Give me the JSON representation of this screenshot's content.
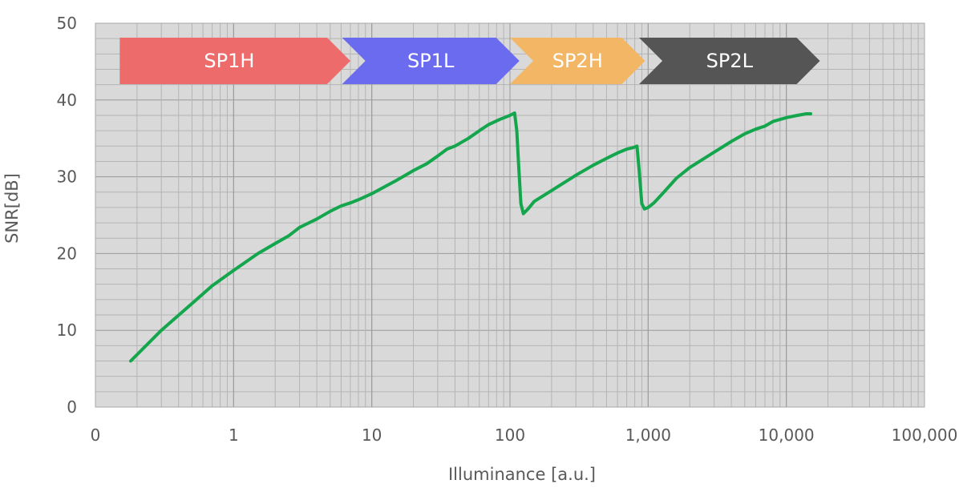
{
  "chart_data": {
    "type": "line",
    "x_scale": "log",
    "xlim": [
      0.1,
      100000
    ],
    "ylim": [
      0,
      50
    ],
    "grid": true,
    "xlabel": "Illuminance [a.u.]",
    "ylabel": "SNR[dB]",
    "x_tick_values": [
      0.1,
      1,
      10,
      100,
      1000,
      10000,
      100000
    ],
    "x_tick_labels": [
      "0",
      "1",
      "10",
      "100",
      "1,000",
      "10,000",
      "100,000"
    ],
    "y_tick_values": [
      0,
      10,
      20,
      30,
      40,
      50
    ],
    "y_tick_labels": [
      "0",
      "10",
      "20",
      "30",
      "40",
      "50"
    ],
    "bands": [
      {
        "label": "SP1H",
        "x_start": 0.15,
        "x_end": 7,
        "color": "#ee6b6b"
      },
      {
        "label": "SP1L",
        "x_start": 6.1,
        "x_end": 117,
        "color": "#6b6bef"
      },
      {
        "label": "SP2H",
        "x_start": 100,
        "x_end": 950,
        "color": "#f2b664"
      },
      {
        "label": "SP2L",
        "x_start": 860,
        "x_end": 17500,
        "color": "#555555"
      }
    ],
    "series": [
      {
        "color": "#13a64d",
        "points": [
          [
            0.18,
            6.0
          ],
          [
            0.3,
            10.0
          ],
          [
            0.5,
            13.5
          ],
          [
            0.7,
            15.8
          ],
          [
            1.0,
            17.8
          ],
          [
            1.5,
            20.0
          ],
          [
            2.0,
            21.3
          ],
          [
            2.5,
            22.3
          ],
          [
            3.0,
            23.4
          ],
          [
            4.0,
            24.5
          ],
          [
            5.0,
            25.5
          ],
          [
            6.0,
            26.2
          ],
          [
            7.0,
            26.6
          ],
          [
            8.0,
            27.0
          ],
          [
            10.0,
            27.8
          ],
          [
            13.0,
            28.9
          ],
          [
            15.0,
            29.5
          ],
          [
            20.0,
            30.8
          ],
          [
            25.0,
            31.7
          ],
          [
            30.0,
            32.7
          ],
          [
            35.0,
            33.6
          ],
          [
            40.0,
            34.0
          ],
          [
            50.0,
            35.0
          ],
          [
            60.0,
            36.0
          ],
          [
            70.0,
            36.8
          ],
          [
            85.0,
            37.5
          ],
          [
            100.0,
            38.0
          ],
          [
            108.0,
            38.3
          ],
          [
            112.0,
            36.0
          ],
          [
            116.0,
            31.0
          ],
          [
            120.0,
            26.5
          ],
          [
            125.0,
            25.2
          ],
          [
            135.0,
            25.8
          ],
          [
            150.0,
            26.8
          ],
          [
            200.0,
            28.2
          ],
          [
            300.0,
            30.2
          ],
          [
            400.0,
            31.5
          ],
          [
            500.0,
            32.4
          ],
          [
            600.0,
            33.1
          ],
          [
            700.0,
            33.6
          ],
          [
            780.0,
            33.8
          ],
          [
            830.0,
            34.0
          ],
          [
            860.0,
            31.0
          ],
          [
            900.0,
            26.5
          ],
          [
            940.0,
            25.8
          ],
          [
            1000.0,
            26.0
          ],
          [
            1100.0,
            26.6
          ],
          [
            1300.0,
            28.0
          ],
          [
            1600.0,
            29.8
          ],
          [
            2000.0,
            31.2
          ],
          [
            3000.0,
            33.2
          ],
          [
            4000.0,
            34.6
          ],
          [
            5000.0,
            35.6
          ],
          [
            6000.0,
            36.2
          ],
          [
            7000.0,
            36.6
          ],
          [
            8000.0,
            37.2
          ],
          [
            10000.0,
            37.7
          ],
          [
            12000.0,
            38.0
          ],
          [
            14000.0,
            38.2
          ],
          [
            15000.0,
            38.2
          ]
        ]
      }
    ]
  }
}
